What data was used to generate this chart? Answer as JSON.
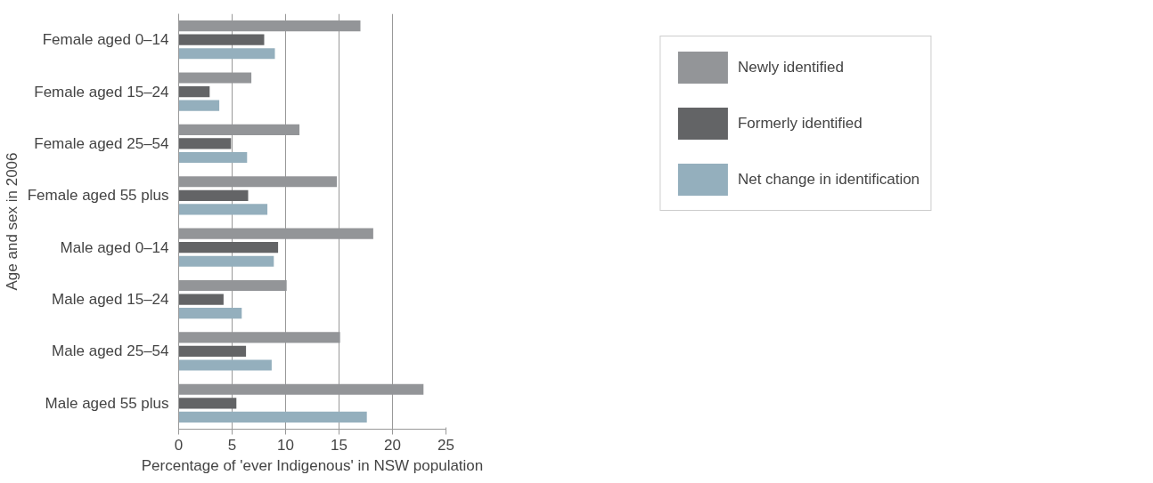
{
  "chart_data": {
    "type": "bar",
    "orientation": "horizontal",
    "xlabel": "Percentage of 'ever Indigenous' in NSW population",
    "ylabel": "Age and sex in 2006",
    "categories": [
      "Female aged 0–14",
      "Female aged 15–24",
      "Female aged 25–54",
      "Female aged 55 plus",
      "Male aged 0–14",
      "Male aged 15–24",
      "Male aged 25–54",
      "Male aged 55 plus"
    ],
    "series": [
      {
        "name": "Newly identified",
        "color": "#939598",
        "values": [
          17.0,
          6.8,
          11.3,
          14.8,
          18.2,
          10.1,
          15.1,
          22.9
        ]
      },
      {
        "name": "Formerly identified",
        "color": "#636466",
        "values": [
          8.0,
          2.9,
          4.9,
          6.5,
          9.3,
          4.2,
          6.3,
          5.4
        ]
      },
      {
        "name": "Net change in identification",
        "color": "#94afbd",
        "values": [
          9.0,
          3.8,
          6.4,
          8.3,
          8.9,
          5.9,
          8.7,
          17.6
        ]
      }
    ],
    "xlim": [
      0,
      25
    ],
    "xticks": [
      0,
      5,
      10,
      15,
      20,
      25
    ],
    "grid": "x",
    "legend": "top right"
  }
}
